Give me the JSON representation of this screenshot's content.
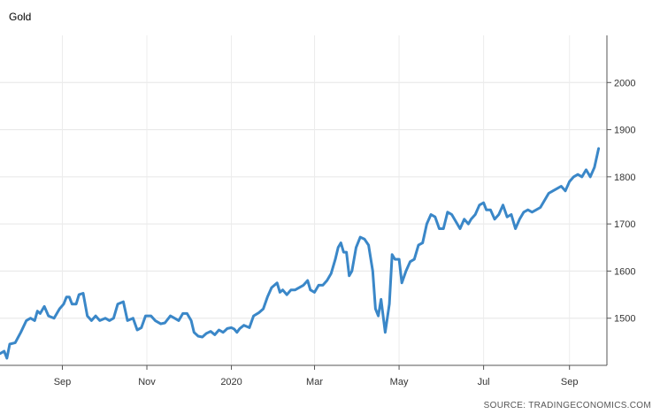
{
  "chart_data": {
    "type": "line",
    "title": "Gold",
    "source": "SOURCE: TRADINGECONOMICS.COM",
    "xlabel": "",
    "ylabel": "",
    "line_color": "#3a87c8",
    "grid": true,
    "y_axis_side": "right",
    "ylim": [
      1400,
      2100
    ],
    "y_ticks": [
      1500,
      1600,
      1700,
      1800,
      1900,
      2000
    ],
    "xlim": [
      "2019-07-18",
      "2020-09-28"
    ],
    "x_ticks": [
      {
        "date": "2019-09-01",
        "label": "Sep"
      },
      {
        "date": "2019-11-01",
        "label": "Nov"
      },
      {
        "date": "2020-01-01",
        "label": "2020"
      },
      {
        "date": "2020-03-01",
        "label": "Mar"
      },
      {
        "date": "2020-05-01",
        "label": "May"
      },
      {
        "date": "2020-07-01",
        "label": "Jul"
      },
      {
        "date": "2020-09-01",
        "label": "Sep"
      }
    ],
    "series": [
      {
        "values": [
          [
            "2019-07-18",
            1425
          ],
          [
            "2019-07-21",
            1430
          ],
          [
            "2019-07-23",
            1415
          ],
          [
            "2019-07-25",
            1445
          ],
          [
            "2019-07-29",
            1448
          ],
          [
            "2019-08-02",
            1470
          ],
          [
            "2019-08-06",
            1495
          ],
          [
            "2019-08-09",
            1500
          ],
          [
            "2019-08-12",
            1495
          ],
          [
            "2019-08-14",
            1515
          ],
          [
            "2019-08-16",
            1510
          ],
          [
            "2019-08-19",
            1525
          ],
          [
            "2019-08-22",
            1505
          ],
          [
            "2019-08-26",
            1500
          ],
          [
            "2019-08-30",
            1520
          ],
          [
            "2019-09-02",
            1530
          ],
          [
            "2019-09-04",
            1545
          ],
          [
            "2019-09-06",
            1545
          ],
          [
            "2019-09-08",
            1530
          ],
          [
            "2019-09-11",
            1530
          ],
          [
            "2019-09-13",
            1550
          ],
          [
            "2019-09-16",
            1553
          ],
          [
            "2019-09-19",
            1505
          ],
          [
            "2019-09-22",
            1495
          ],
          [
            "2019-09-25",
            1505
          ],
          [
            "2019-09-28",
            1495
          ],
          [
            "2019-10-02",
            1500
          ],
          [
            "2019-10-05",
            1495
          ],
          [
            "2019-10-08",
            1500
          ],
          [
            "2019-10-11",
            1530
          ],
          [
            "2019-10-15",
            1535
          ],
          [
            "2019-10-18",
            1495
          ],
          [
            "2019-10-22",
            1500
          ],
          [
            "2019-10-25",
            1475
          ],
          [
            "2019-10-28",
            1480
          ],
          [
            "2019-10-31",
            1505
          ],
          [
            "2019-11-04",
            1505
          ],
          [
            "2019-11-07",
            1495
          ],
          [
            "2019-11-11",
            1488
          ],
          [
            "2019-11-14",
            1490
          ],
          [
            "2019-11-18",
            1505
          ],
          [
            "2019-11-21",
            1500
          ],
          [
            "2019-11-24",
            1495
          ],
          [
            "2019-11-27",
            1510
          ],
          [
            "2019-11-30",
            1510
          ],
          [
            "2019-12-03",
            1495
          ],
          [
            "2019-12-05",
            1470
          ],
          [
            "2019-12-08",
            1462
          ],
          [
            "2019-12-11",
            1460
          ],
          [
            "2019-12-14",
            1468
          ],
          [
            "2019-12-17",
            1472
          ],
          [
            "2019-12-20",
            1465
          ],
          [
            "2019-12-23",
            1475
          ],
          [
            "2019-12-26",
            1470
          ],
          [
            "2019-12-29",
            1478
          ],
          [
            "2020-01-01",
            1480
          ],
          [
            "2020-01-03",
            1477
          ],
          [
            "2020-01-05",
            1470
          ],
          [
            "2020-01-07",
            1478
          ],
          [
            "2020-01-10",
            1485
          ],
          [
            "2020-01-14",
            1480
          ],
          [
            "2020-01-17",
            1505
          ],
          [
            "2020-01-21",
            1512
          ],
          [
            "2020-01-24",
            1520
          ],
          [
            "2020-01-27",
            1545
          ],
          [
            "2020-01-30",
            1565
          ],
          [
            "2020-02-03",
            1575
          ],
          [
            "2020-02-05",
            1555
          ],
          [
            "2020-02-07",
            1560
          ],
          [
            "2020-02-10",
            1550
          ],
          [
            "2020-02-13",
            1560
          ],
          [
            "2020-02-16",
            1560
          ],
          [
            "2020-02-19",
            1565
          ],
          [
            "2020-02-22",
            1570
          ],
          [
            "2020-02-25",
            1580
          ],
          [
            "2020-02-27",
            1560
          ],
          [
            "2020-03-01",
            1555
          ],
          [
            "2020-03-04",
            1570
          ],
          [
            "2020-03-07",
            1570
          ],
          [
            "2020-03-10",
            1580
          ],
          [
            "2020-03-13",
            1595
          ],
          [
            "2020-03-16",
            1625
          ],
          [
            "2020-03-18",
            1650
          ],
          [
            "2020-03-20",
            1660
          ],
          [
            "2020-03-22",
            1640
          ],
          [
            "2020-03-24",
            1640
          ],
          [
            "2020-03-26",
            1590
          ],
          [
            "2020-03-28",
            1600
          ],
          [
            "2020-03-31",
            1650
          ],
          [
            "2020-04-03",
            1672
          ],
          [
            "2020-04-06",
            1668
          ],
          [
            "2020-04-09",
            1655
          ],
          [
            "2020-04-12",
            1600
          ],
          [
            "2020-04-14",
            1520
          ],
          [
            "2020-04-16",
            1505
          ],
          [
            "2020-04-18",
            1540
          ],
          [
            "2020-04-21",
            1470
          ],
          [
            "2020-04-24",
            1530
          ],
          [
            "2020-04-26",
            1635
          ],
          [
            "2020-04-28",
            1625
          ],
          [
            "2020-05-01",
            1625
          ],
          [
            "2020-05-03",
            1575
          ],
          [
            "2020-05-06",
            1600
          ],
          [
            "2020-05-09",
            1620
          ],
          [
            "2020-05-12",
            1625
          ],
          [
            "2020-05-15",
            1655
          ],
          [
            "2020-05-18",
            1660
          ],
          [
            "2020-05-21",
            1700
          ],
          [
            "2020-05-24",
            1720
          ],
          [
            "2020-05-27",
            1715
          ],
          [
            "2020-05-30",
            1690
          ],
          [
            "2020-06-02",
            1690
          ],
          [
            "2020-06-05",
            1725
          ],
          [
            "2020-06-08",
            1720
          ],
          [
            "2020-06-11",
            1705
          ],
          [
            "2020-06-14",
            1690
          ],
          [
            "2020-06-17",
            1710
          ],
          [
            "2020-06-20",
            1700
          ],
          [
            "2020-06-22",
            1710
          ],
          [
            "2020-06-25",
            1720
          ],
          [
            "2020-06-28",
            1740
          ],
          [
            "2020-07-01",
            1745
          ],
          [
            "2020-07-03",
            1730
          ],
          [
            "2020-07-06",
            1730
          ],
          [
            "2020-07-09",
            1710
          ],
          [
            "2020-07-12",
            1720
          ],
          [
            "2020-07-15",
            1740
          ],
          [
            "2020-07-18",
            1715
          ],
          [
            "2020-07-21",
            1720
          ],
          [
            "2020-07-24",
            1690
          ],
          [
            "2020-07-27",
            1710
          ],
          [
            "2020-07-30",
            1725
          ],
          [
            "2020-08-02",
            1730
          ],
          [
            "2020-08-05",
            1725
          ],
          [
            "2020-08-08",
            1730
          ],
          [
            "2020-08-11",
            1735
          ],
          [
            "2020-08-14",
            1750
          ],
          [
            "2020-08-17",
            1765
          ],
          [
            "2020-08-20",
            1770
          ],
          [
            "2020-08-23",
            1775
          ],
          [
            "2020-08-26",
            1780
          ],
          [
            "2020-08-29",
            1770
          ],
          [
            "2020-09-01",
            1790
          ],
          [
            "2020-09-04",
            1800
          ],
          [
            "2020-09-07",
            1805
          ],
          [
            "2020-09-10",
            1800
          ],
          [
            "2020-09-13",
            1815
          ],
          [
            "2020-09-16",
            1800
          ],
          [
            "2020-09-19",
            1820
          ],
          [
            "2020-09-22",
            1860
          ]
        ]
      }
    ]
  }
}
